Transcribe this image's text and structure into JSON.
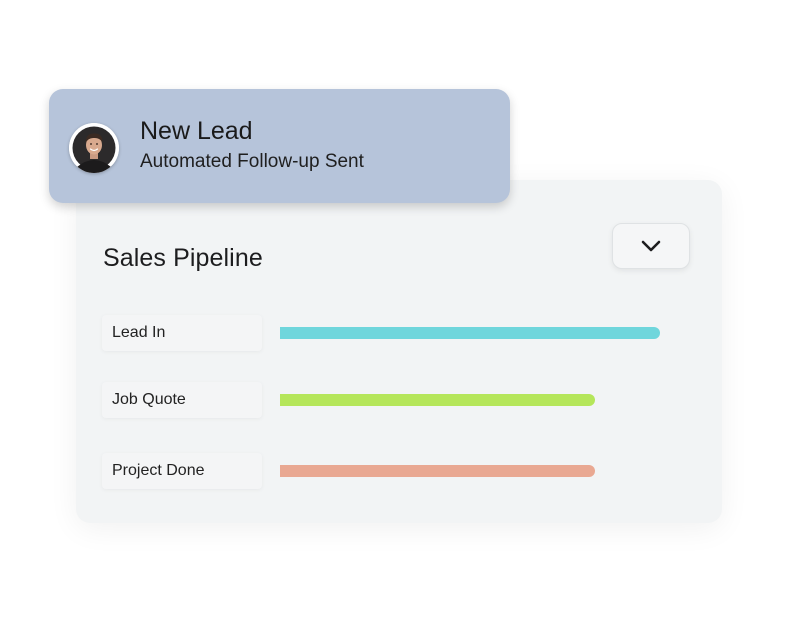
{
  "notification": {
    "title": "New Lead",
    "subtitle": "Automated Follow-up Sent",
    "avatar_icon": "person-avatar"
  },
  "pipeline": {
    "title": "Sales Pipeline",
    "dropdown_icon": "chevron-down-icon",
    "stages": [
      {
        "label": "Lead In",
        "progress": 1.0,
        "color": "#6fd6dc"
      },
      {
        "label": "Job Quote",
        "progress": 0.83,
        "color": "#b5e65a"
      },
      {
        "label": "Project Done",
        "progress": 0.83,
        "color": "#e9a892"
      }
    ]
  }
}
